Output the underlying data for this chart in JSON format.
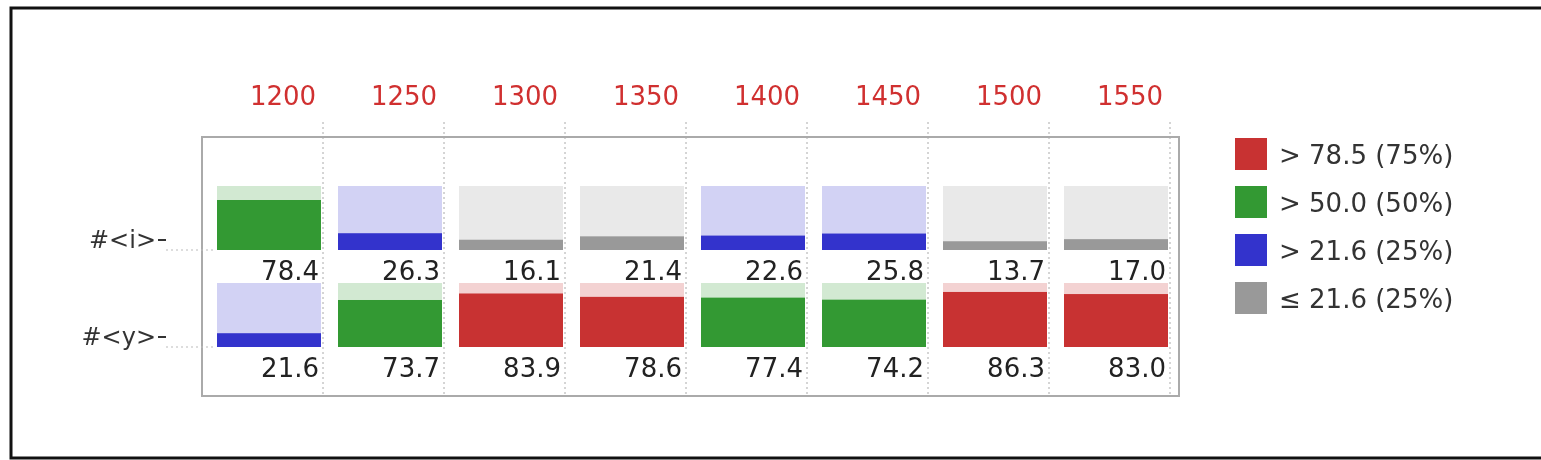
{
  "chart_data": {
    "type": "heatmap",
    "categories": [
      "1200",
      "1250",
      "1300",
      "1350",
      "1400",
      "1450",
      "1500",
      "1550"
    ],
    "y_categories": [
      "#<i>",
      "#<y>"
    ],
    "cells": [
      [
        78.4,
        26.3,
        16.1,
        21.4,
        22.6,
        25.8,
        13.7,
        17.0
      ],
      [
        21.6,
        73.7,
        83.9,
        78.6,
        77.4,
        74.2,
        86.3,
        83.0
      ]
    ],
    "cell_labels": [
      [
        "78.4",
        "26.3",
        "16.1",
        "21.4",
        "22.6",
        "25.8",
        "13.7",
        "17.0"
      ],
      [
        "21.6",
        "73.7",
        "83.9",
        "78.6",
        "77.4",
        "74.2",
        "86.3",
        "83.0"
      ]
    ],
    "colors": [
      "#c83232",
      "#339933",
      "#3333cc",
      "#999999"
    ],
    "annotations": [
      "> 78.5 (75%)",
      "> 50.0 (50%)",
      "> 21.6 (25%)",
      "≤ 21.6 (25%)"
    ],
    "grid": "x"
  }
}
